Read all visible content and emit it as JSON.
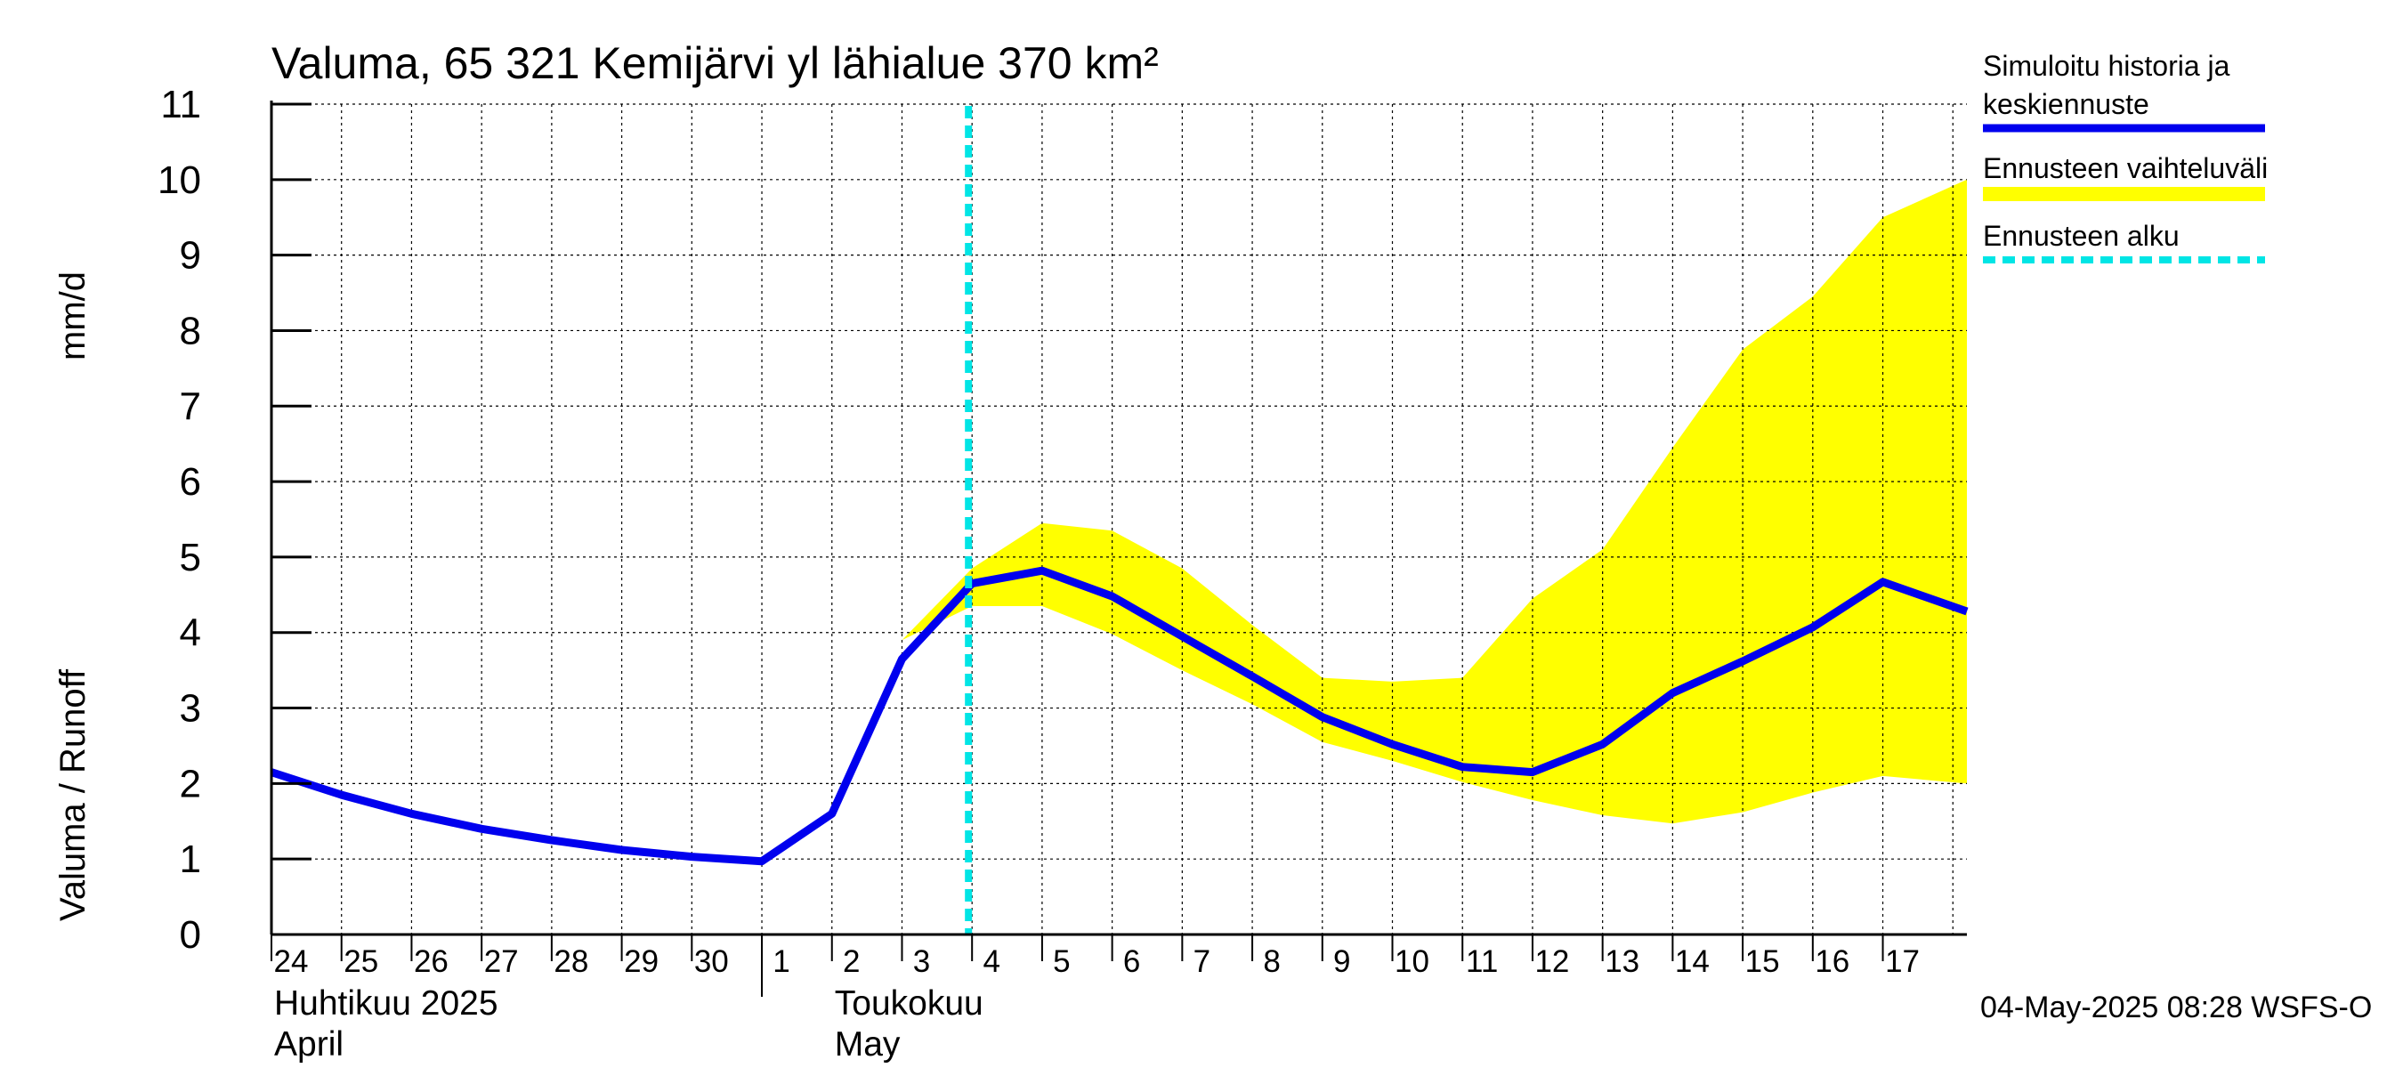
{
  "chart_data": {
    "type": "line",
    "title": "Valuma, 65 321 Kemijärvi yl lähialue 370 km²",
    "ylabel_left": "Valuma / Runoff",
    "ylabel_right": "mm/d",
    "ylim": [
      0,
      11
    ],
    "yticks": [
      "0",
      "1",
      "2",
      "3",
      "4",
      "5",
      "6",
      "7",
      "8",
      "9",
      "10",
      "11"
    ],
    "x_start_day_index": 0,
    "x_end_day_index": 24.2,
    "day_labels": [
      "24",
      "25",
      "26",
      "27",
      "28",
      "29",
      "30",
      "1",
      "2",
      "3",
      "4",
      "5",
      "6",
      "7",
      "8",
      "9",
      "10",
      "11",
      "12",
      "13",
      "14",
      "15",
      "16",
      "17"
    ],
    "month_labels": [
      {
        "line1": "Huhtikuu  2025",
        "line2": "April",
        "day_index": 0
      },
      {
        "line1": "Toukokuu",
        "line2": "May",
        "day_index": 8
      }
    ],
    "month_boundary_day_index": 7,
    "forecast_start_day_index": 10,
    "series": [
      {
        "name": "Simuloitu historia ja keskiennuste",
        "color": "#0000ee",
        "x": [
          0,
          1,
          2,
          3,
          4,
          5,
          6,
          7,
          8,
          9,
          10,
          11,
          12,
          13,
          14,
          15,
          16,
          17,
          18,
          19,
          20,
          21,
          22,
          23,
          24.2
        ],
        "values": [
          2.15,
          1.85,
          1.6,
          1.4,
          1.25,
          1.12,
          1.03,
          0.97,
          1.6,
          3.65,
          4.65,
          4.82,
          4.48,
          3.95,
          3.42,
          2.88,
          2.52,
          2.22,
          2.15,
          2.52,
          3.2,
          3.62,
          4.07,
          4.67,
          4.28
        ]
      }
    ],
    "range_band": {
      "name": "Ennusteen vaihteluväli",
      "color": "#ffff00",
      "x": [
        9,
        10,
        11,
        12,
        13,
        14,
        15,
        16,
        17,
        18,
        19,
        20,
        21,
        22,
        23,
        24.2
      ],
      "upper": [
        3.9,
        4.85,
        5.45,
        5.35,
        4.85,
        4.1,
        3.4,
        3.35,
        3.4,
        4.45,
        5.1,
        6.45,
        7.75,
        8.45,
        9.5,
        10.0
      ],
      "lower": [
        3.9,
        4.35,
        4.35,
        3.98,
        3.5,
        3.05,
        2.55,
        2.3,
        2.02,
        1.78,
        1.58,
        1.47,
        1.62,
        1.88,
        2.1,
        2.0
      ]
    },
    "legend": [
      {
        "label_line1": "Simuloitu historia ja",
        "label_line2": "keskiennuste",
        "color": "#0000ee",
        "style": "solid"
      },
      {
        "label_line1": "Ennusteen vaihteluväli",
        "label_line2": "",
        "color": "#ffff00",
        "style": "band"
      },
      {
        "label_line1": "Ennusteen alku",
        "label_line2": "",
        "color": "#00e5e5",
        "style": "dashed"
      }
    ],
    "grid": true,
    "timestamp": "04-May-2025 08:28 WSFS-O"
  }
}
